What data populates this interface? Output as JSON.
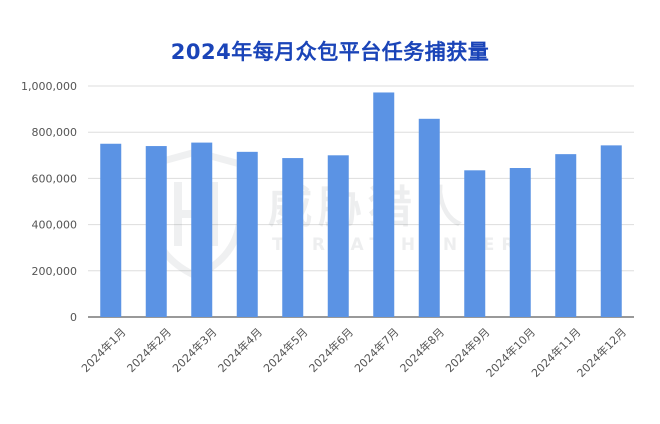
{
  "chart_data": {
    "type": "bar",
    "title": "2024年每月众包平台任务捕获量",
    "xlabel": "",
    "ylabel": "",
    "categories": [
      "2024年1月",
      "2024年2月",
      "2024年3月",
      "2024年4月",
      "2024年5月",
      "2024年6月",
      "2024年7月",
      "2024年8月",
      "2024年9月",
      "2024年10月",
      "2024年11月",
      "2024年12月"
    ],
    "values": [
      750000,
      740000,
      755000,
      715000,
      688000,
      700000,
      972000,
      858000,
      635000,
      645000,
      705000,
      743000
    ],
    "ylim": [
      0,
      1000000
    ],
    "yticks": [
      "0",
      "200,000",
      "400,000",
      "600,000",
      "800,000",
      "1,000,000"
    ],
    "grid": true,
    "legend": "none",
    "bar_color": "#5b93e4",
    "grid_color": "#dddddd",
    "title_color": "#1a44b8"
  },
  "watermark": {
    "text_cn": "威胁猎人",
    "text_en": "THREAT HUNTER",
    "icon": "shield-h-logo-icon"
  }
}
